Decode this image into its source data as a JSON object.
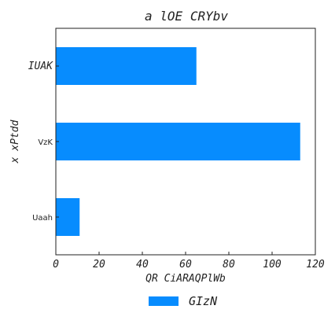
{
  "chart_data": {
    "type": "bar",
    "orientation": "horizontal",
    "title": "a lOE CRYbv",
    "xlabel": "QR CiARAQPlWb",
    "ylabel": "x xPtdd",
    "categories": [
      "IUAK",
      "VzK",
      "Uaah"
    ],
    "series": [
      {
        "name": "GIzN",
        "values": [
          65,
          113,
          11
        ],
        "color": "#078cfe"
      }
    ],
    "xlim": [
      0,
      120
    ],
    "xticks": [
      "0",
      "20",
      "40",
      "60",
      "80",
      "100",
      "120"
    ],
    "grid": false,
    "legend_position": "bottom-center"
  }
}
